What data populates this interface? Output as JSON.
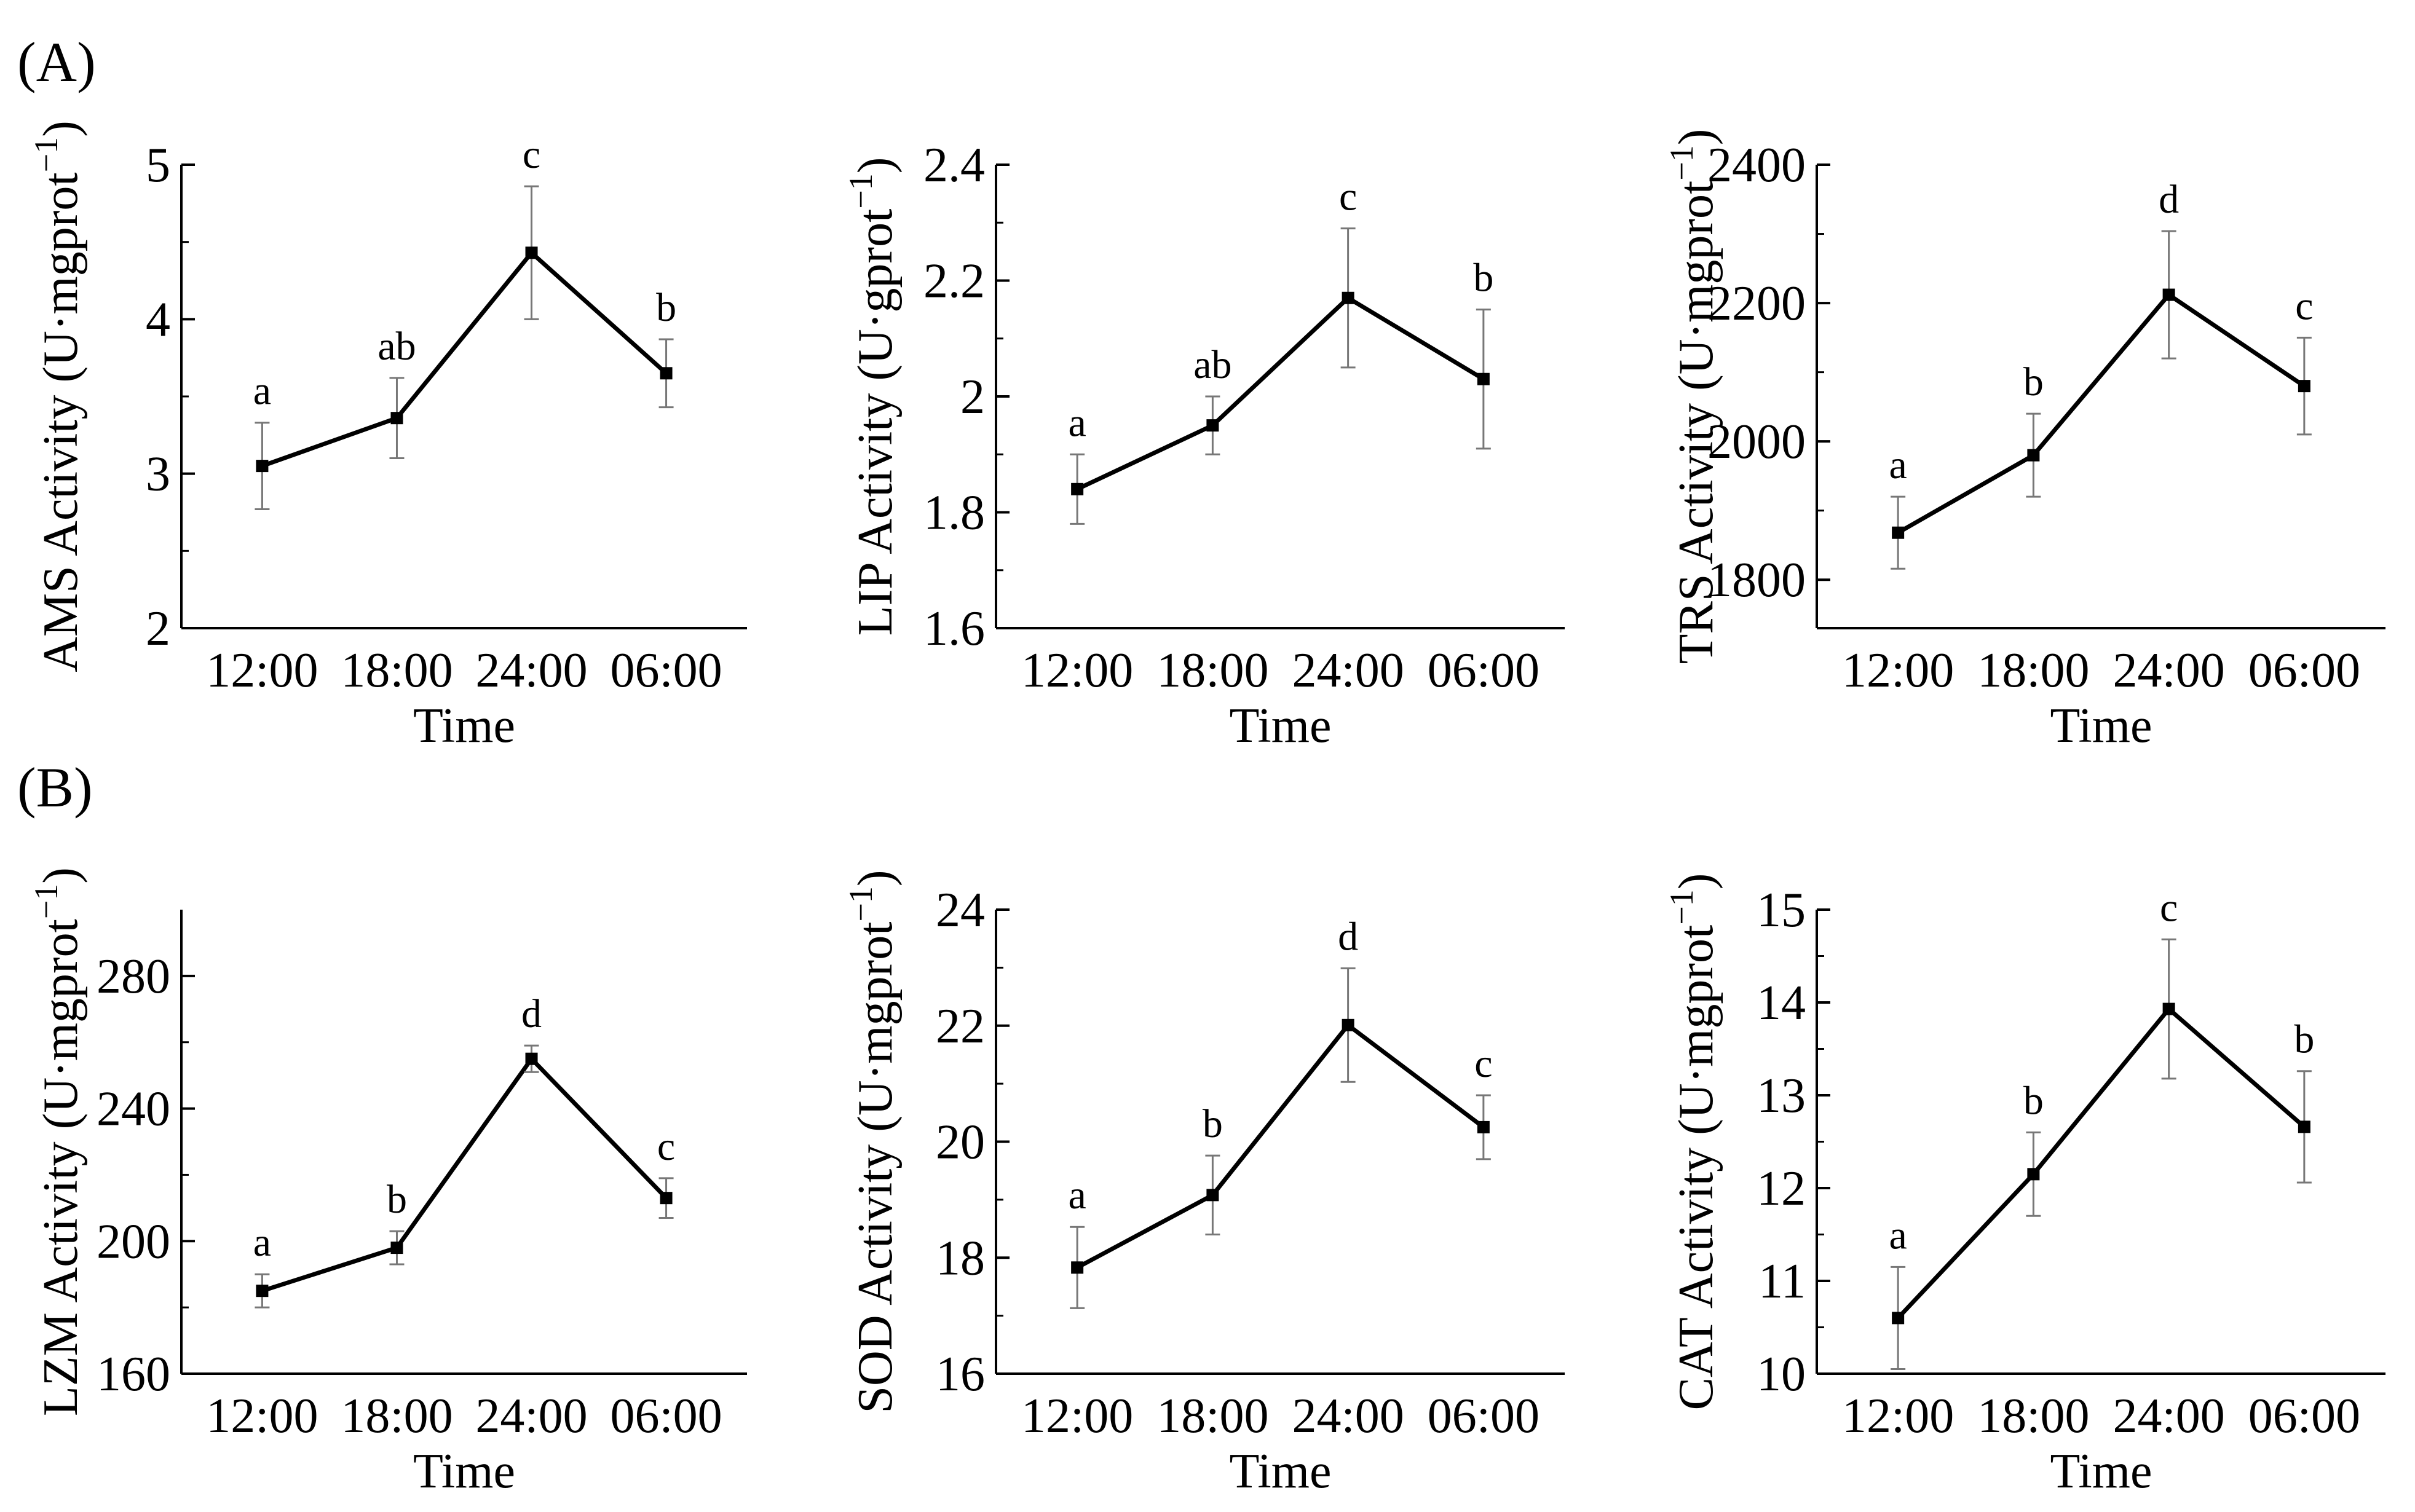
{
  "panels": [
    {
      "label": "(A)"
    },
    {
      "label": "(B)"
    }
  ],
  "chart_data": [
    {
      "type": "line",
      "panel": "(A)",
      "categories": [
        "12:00",
        "18:00",
        "24:00",
        "06:00"
      ],
      "series": [
        {
          "values": [
            3.05,
            3.36,
            4.43,
            3.65
          ],
          "errors": [
            0.28,
            0.26,
            0.43,
            0.22
          ]
        }
      ],
      "significance": [
        "a",
        "ab",
        "c",
        "b"
      ],
      "xlabel": "Time",
      "ylabel": "AMS Activity (U·mgprot",
      "ylabel_sup": "−1",
      "ylabel_close": ")",
      "ylim": [
        2,
        5
      ],
      "yticks": [
        2,
        3,
        4,
        5
      ],
      "yticklabels": [
        "2",
        "3",
        "4",
        "5"
      ]
    },
    {
      "type": "line",
      "panel": "(A)",
      "categories": [
        "12:00",
        "18:00",
        "24:00",
        "06:00"
      ],
      "series": [
        {
          "values": [
            1.84,
            1.95,
            2.17,
            2.03
          ],
          "errors": [
            0.06,
            0.05,
            0.12,
            0.12
          ]
        }
      ],
      "significance": [
        "a",
        "ab",
        "c",
        "b"
      ],
      "xlabel": "Time",
      "ylabel": "LIP Activity (U·gprot",
      "ylabel_sup": "−1",
      "ylabel_close": ")",
      "ylim": [
        1.6,
        2.4
      ],
      "yticks": [
        1.6,
        1.8,
        2.0,
        2.2,
        2.4
      ],
      "yticklabels": [
        "1.6",
        "1.8",
        "2",
        "2.2",
        "2.4"
      ]
    },
    {
      "type": "line",
      "panel": "(A)",
      "categories": [
        "12:00",
        "18:00",
        "24:00",
        "06:00"
      ],
      "series": [
        {
          "values": [
            1868,
            1980,
            2212,
            2080
          ],
          "errors": [
            52,
            60,
            92,
            70
          ]
        }
      ],
      "significance": [
        "a",
        "b",
        "d",
        "c"
      ],
      "xlabel": "Time",
      "ylabel": "TRS Activity (U·mgprot",
      "ylabel_sup": "−1",
      "ylabel_close": ")",
      "ylim": [
        1730,
        2400
      ],
      "yticks": [
        1800,
        2000,
        2200,
        2400
      ],
      "yticklabels": [
        "1800",
        "2000",
        "2200",
        "2400"
      ]
    },
    {
      "type": "line",
      "panel": "(B)",
      "categories": [
        "12:00",
        "18:00",
        "24:00",
        "06:00"
      ],
      "series": [
        {
          "values": [
            185,
            198,
            255,
            213
          ],
          "errors": [
            5,
            5,
            4,
            6
          ]
        }
      ],
      "significance": [
        "a",
        "b",
        "d",
        "c"
      ],
      "xlabel": "Time",
      "ylabel": "LZM Activity (U·mgprot",
      "ylabel_sup": "−1",
      "ylabel_close": ")",
      "ylim": [
        160,
        300
      ],
      "yticks": [
        160,
        200,
        240,
        280
      ],
      "yticklabels": [
        "160",
        "200",
        "240",
        "280"
      ]
    },
    {
      "type": "line",
      "panel": "(B)",
      "categories": [
        "12:00",
        "18:00",
        "24:00",
        "06:00"
      ],
      "series": [
        {
          "values": [
            17.83,
            19.08,
            22.01,
            20.25
          ],
          "errors": [
            0.7,
            0.68,
            0.98,
            0.55
          ]
        }
      ],
      "significance": [
        "a",
        "b",
        "d",
        "c"
      ],
      "xlabel": "Time",
      "ylabel": "SOD Activity (U·mgprot",
      "ylabel_sup": "−1",
      "ylabel_close": ")",
      "ylim": [
        16,
        24
      ],
      "yticks": [
        16,
        18,
        20,
        22,
        24
      ],
      "yticklabels": [
        "16",
        "18",
        "20",
        "22",
        "24"
      ]
    },
    {
      "type": "line",
      "panel": "(B)",
      "categories": [
        "12:00",
        "18:00",
        "24:00",
        "06:00"
      ],
      "series": [
        {
          "values": [
            10.6,
            12.15,
            13.93,
            12.66
          ],
          "errors": [
            0.55,
            0.45,
            0.75,
            0.6
          ]
        }
      ],
      "significance": [
        "a",
        "b",
        "c",
        "b"
      ],
      "xlabel": "Time",
      "ylabel": "CAT Activity (U·mgprot",
      "ylabel_sup": "−1",
      "ylabel_close": ")",
      "ylim": [
        10,
        15
      ],
      "yticks": [
        10,
        11,
        12,
        13,
        14,
        15
      ],
      "yticklabels": [
        "10",
        "11",
        "12",
        "13",
        "14",
        "15"
      ]
    }
  ]
}
